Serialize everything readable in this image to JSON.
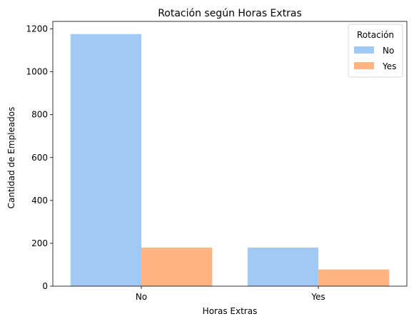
{
  "chart_data": {
    "type": "bar",
    "title": "Rotación según Horas Extras",
    "xlabel": "Horas Extras",
    "ylabel": "Cantidad de Empleados",
    "categories": [
      "No",
      "Yes"
    ],
    "series": [
      {
        "name": "No",
        "values": [
          1176,
          180
        ],
        "color": "#a1c9f4"
      },
      {
        "name": "Yes",
        "values": [
          180,
          78
        ],
        "color": "#ffb482"
      }
    ],
    "ylim": [
      0,
      1235
    ],
    "yticks": [
      0,
      200,
      400,
      600,
      800,
      1000,
      1200
    ],
    "grid": false,
    "legend": {
      "title": "Rotación",
      "placement": "top-right"
    }
  }
}
